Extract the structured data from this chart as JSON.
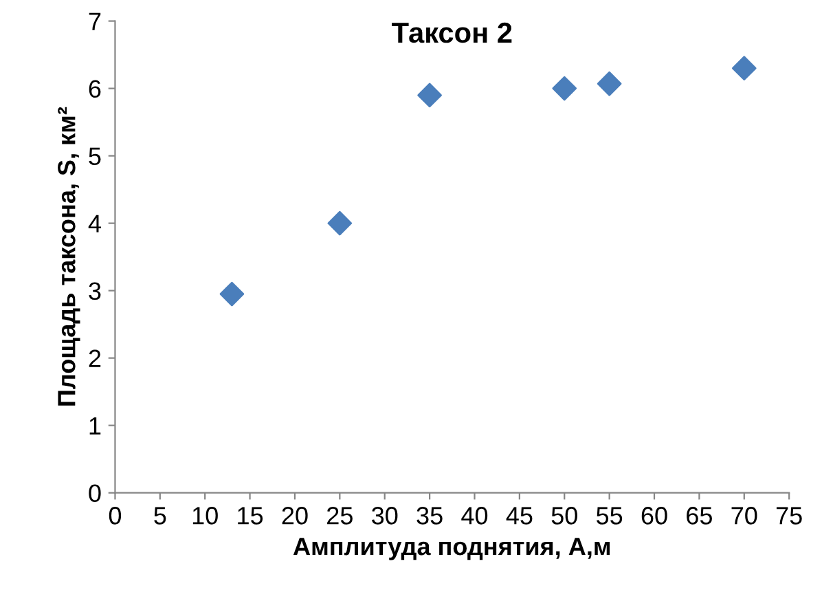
{
  "chart_data": {
    "type": "scatter",
    "title": "Таксон 2",
    "xlabel": "Амплитуда поднятия, А,м",
    "ylabel": "Площадь таксона, S, км²",
    "x": [
      13,
      25,
      35,
      50,
      55,
      70
    ],
    "series": [
      {
        "color": "#4a7ebb",
        "values": [
          2.95,
          4.0,
          5.9,
          6.0,
          6.07,
          6.3
        ]
      }
    ],
    "xlim": [
      0,
      75
    ],
    "xticks": [
      0,
      5,
      10,
      15,
      20,
      25,
      30,
      35,
      40,
      45,
      50,
      55,
      60,
      65,
      70,
      75
    ],
    "ylim": [
      0,
      7
    ],
    "yticks": [
      0,
      1,
      2,
      3,
      4,
      5,
      6,
      7
    ],
    "marker": "diamond",
    "grid": false,
    "legend": false
  }
}
